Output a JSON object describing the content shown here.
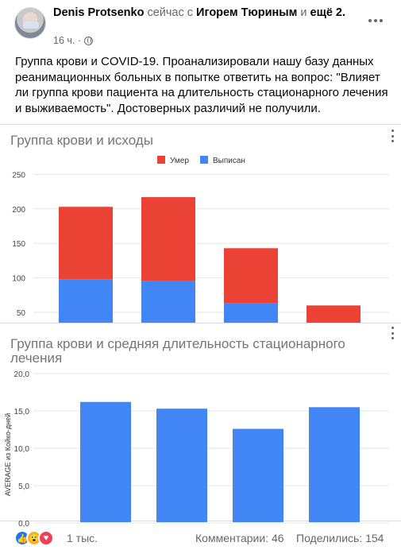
{
  "post": {
    "author": "Denis Protsenko",
    "with_prefix": "сейчас с",
    "tagged": "Игорем Тюриным",
    "and_text": "и",
    "more_tagged": "ещё 2.",
    "time": "16 ч. ·",
    "text": "Группа крови и COVID-19. Проанализировали нашу базу данных реанимационных больных в попытке ответить на вопрос: \"Влияет ли группа крови пациента на длительность стационарного лечения и выживаемость\". Достоверных различий не получили."
  },
  "chart_data": [
    {
      "type": "bar",
      "stacked": true,
      "title": "Группа крови и исходы",
      "categories": [
        "",
        "",
        "",
        ""
      ],
      "series": [
        {
          "name": "Выписан",
          "color": "#4285f4",
          "values": [
            98,
            96,
            63,
            0
          ]
        },
        {
          "name": "Умер",
          "color": "#ea4335",
          "values": [
            105,
            121,
            80,
            60
          ]
        }
      ],
      "y_ticks": [
        "250",
        "200",
        "150",
        "100",
        "50"
      ],
      "ylim": [
        0,
        250
      ],
      "legend_position": "top-center",
      "grid": true
    },
    {
      "type": "bar",
      "title_line1": "Группа крови и средняя длительность стационарного",
      "title_line2": "лечения",
      "ylabel": "AVERAGE из Койко-дней",
      "categories": [
        "",
        "",
        "",
        ""
      ],
      "series": [
        {
          "name": "",
          "color": "#4285f4",
          "values": [
            16.2,
            15.3,
            12.6,
            15.5
          ]
        }
      ],
      "y_ticks": [
        "20,0",
        "15,0",
        "10,0",
        "5,0",
        "0,0"
      ],
      "ylim": [
        0,
        20
      ],
      "grid": true
    }
  ],
  "footer": {
    "reactions_count": "1 тыс.",
    "comments": "Комментарии: 46",
    "shares": "Поделились: 154"
  },
  "icons": {
    "like": "like-icon",
    "wow": "wow-icon",
    "love": "love-icon",
    "privacy": "globe-icon"
  }
}
